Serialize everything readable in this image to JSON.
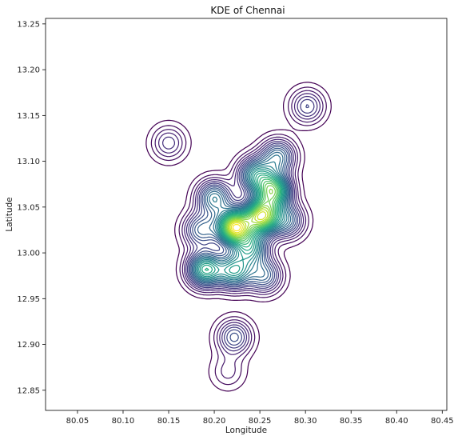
{
  "chart_data": {
    "type": "contour",
    "title": "KDE of Chennai",
    "xlabel": "Longitude",
    "ylabel": "Latitude",
    "xlim": [
      80.015,
      80.455
    ],
    "ylim": [
      12.828,
      13.256
    ],
    "x_ticks": [
      "80.05",
      "80.10",
      "80.15",
      "80.20",
      "80.25",
      "80.30",
      "80.35",
      "80.40",
      "80.45"
    ],
    "y_ticks": [
      "12.85",
      "12.90",
      "12.95",
      "13.00",
      "13.05",
      "13.10",
      "13.15",
      "13.20",
      "13.25"
    ],
    "grid": false,
    "legend": "none",
    "colormap": "viridis",
    "levels": 30,
    "density_peaks": [
      {
        "lon": 80.222,
        "lat": 13.028,
        "weight": 1.0
      },
      {
        "lon": 80.252,
        "lat": 13.04,
        "weight": 0.9
      },
      {
        "lon": 80.265,
        "lat": 13.068,
        "weight": 0.75
      },
      {
        "lon": 80.2,
        "lat": 13.06,
        "weight": 0.45
      },
      {
        "lon": 80.245,
        "lat": 13.085,
        "weight": 0.5
      },
      {
        "lon": 80.27,
        "lat": 13.105,
        "weight": 0.4
      },
      {
        "lon": 80.19,
        "lat": 12.982,
        "weight": 0.65
      },
      {
        "lon": 80.222,
        "lat": 12.98,
        "weight": 0.55
      },
      {
        "lon": 80.255,
        "lat": 12.975,
        "weight": 0.35
      },
      {
        "lon": 80.222,
        "lat": 12.908,
        "weight": 0.3
      },
      {
        "lon": 80.302,
        "lat": 13.16,
        "weight": 0.25
      },
      {
        "lon": 80.15,
        "lat": 13.12,
        "weight": 0.2
      },
      {
        "lon": 80.215,
        "lat": 12.87,
        "weight": 0.12
      },
      {
        "lon": 80.185,
        "lat": 13.025,
        "weight": 0.35
      },
      {
        "lon": 80.24,
        "lat": 13.005,
        "weight": 0.5
      },
      {
        "lon": 80.28,
        "lat": 13.035,
        "weight": 0.35
      }
    ]
  }
}
